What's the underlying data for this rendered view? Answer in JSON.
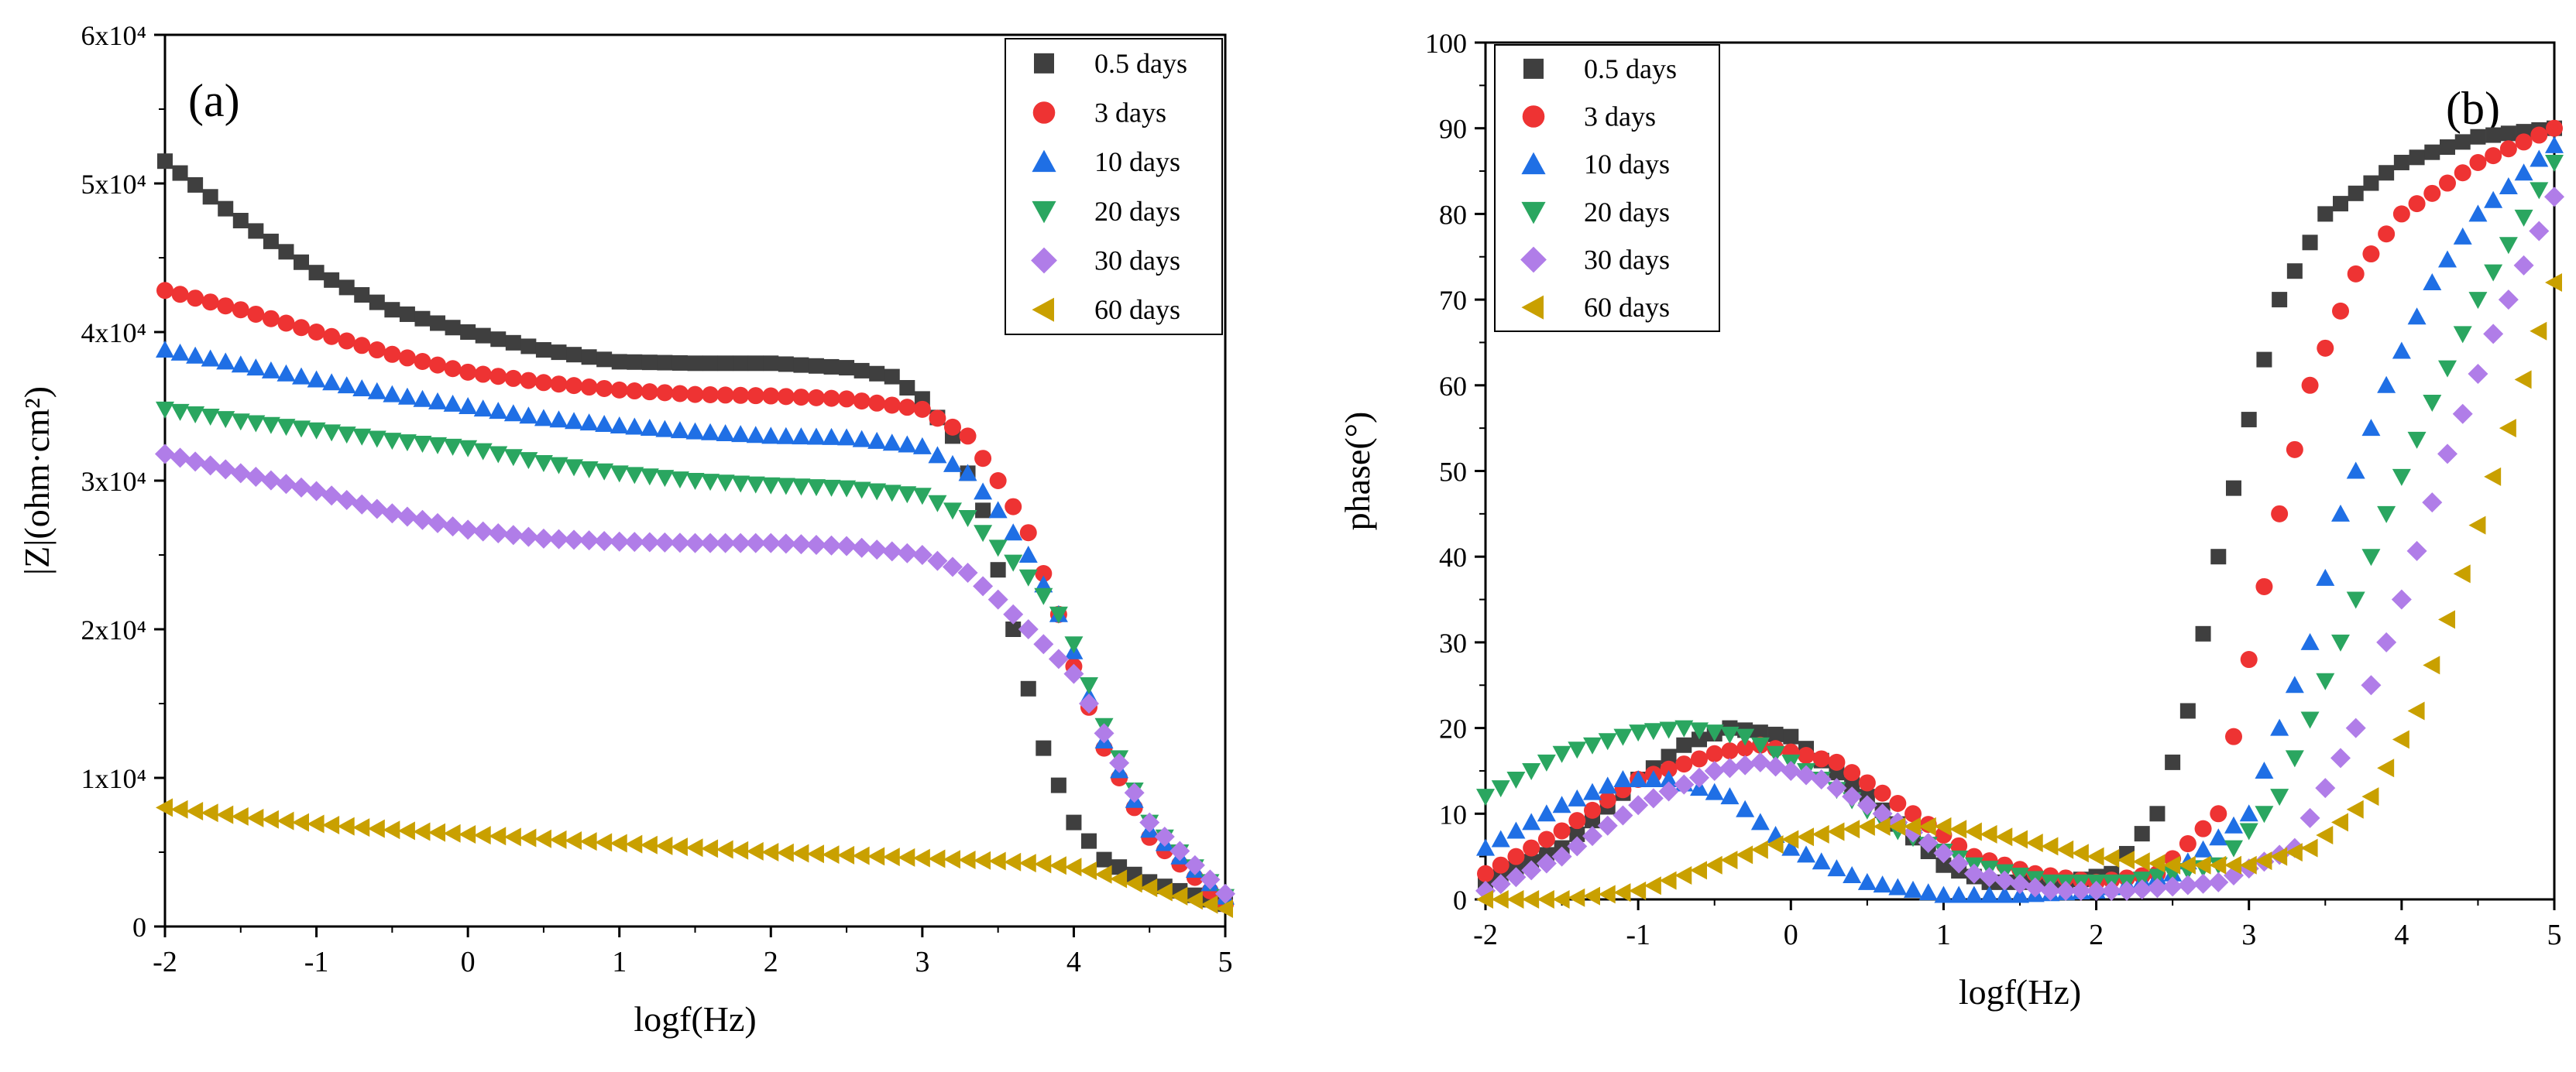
{
  "chart_data": [
    {
      "panel_label": "(a)",
      "type": "scatter",
      "xlabel": "logf(Hz)",
      "ylabel": "|Z|(ohm·cm²)",
      "xlim": [
        -2,
        5
      ],
      "ylim": [
        0,
        60000
      ],
      "x_ticks": [
        "-2",
        "-1",
        "0",
        "1",
        "2",
        "3",
        "4",
        "5"
      ],
      "y_ticks": [
        "0",
        "1x10⁴",
        "2x10⁴",
        "3x10⁴",
        "4x10⁴",
        "5x10⁴",
        "6x10⁴"
      ],
      "legend_position": "top-right",
      "series": [
        {
          "name": "0.5 days",
          "marker": "square",
          "color": "#3f3f3f",
          "points": [
            [
              -2,
              51500
            ],
            [
              -1.5,
              47500
            ],
            [
              -1,
              44000
            ],
            [
              -0.5,
              41500
            ],
            [
              0,
              40000
            ],
            [
              0.5,
              38800
            ],
            [
              1,
              38000
            ],
            [
              1.5,
              37900
            ],
            [
              2,
              37900
            ],
            [
              2.5,
              37600
            ],
            [
              2.8,
              37000
            ],
            [
              3,
              35500
            ],
            [
              3.2,
              33000
            ],
            [
              3.4,
              28000
            ],
            [
              3.6,
              20000
            ],
            [
              3.8,
              12000
            ],
            [
              4,
              7000
            ],
            [
              4.2,
              4500
            ],
            [
              4.5,
              3000
            ],
            [
              5,
              1500
            ]
          ]
        },
        {
          "name": "3 days",
          "marker": "circle",
          "color": "#ee3333",
          "points": [
            [
              -2,
              42800
            ],
            [
              -1.5,
              41500
            ],
            [
              -1,
              40000
            ],
            [
              -0.5,
              38500
            ],
            [
              0,
              37300
            ],
            [
              0.5,
              36600
            ],
            [
              1,
              36100
            ],
            [
              1.5,
              35800
            ],
            [
              2,
              35700
            ],
            [
              2.5,
              35500
            ],
            [
              3,
              34800
            ],
            [
              3.3,
              33000
            ],
            [
              3.5,
              30000
            ],
            [
              3.7,
              26500
            ],
            [
              3.9,
              21000
            ],
            [
              4,
              17500
            ],
            [
              4.2,
              12000
            ],
            [
              4.5,
              6000
            ],
            [
              5,
              1500
            ]
          ]
        },
        {
          "name": "10 days",
          "marker": "triangle-up",
          "color": "#1f6fe5",
          "points": [
            [
              -2,
              38800
            ],
            [
              -1.5,
              37800
            ],
            [
              -1,
              36800
            ],
            [
              -0.5,
              35800
            ],
            [
              0,
              35000
            ],
            [
              0.5,
              34200
            ],
            [
              1,
              33700
            ],
            [
              1.5,
              33300
            ],
            [
              2,
              33000
            ],
            [
              2.5,
              32900
            ],
            [
              3,
              32300
            ],
            [
              3.3,
              30500
            ],
            [
              3.5,
              28000
            ],
            [
              3.7,
              25000
            ],
            [
              3.9,
              21000
            ],
            [
              4,
              18500
            ],
            [
              4.2,
              12500
            ],
            [
              4.5,
              6500
            ],
            [
              5,
              2000
            ]
          ]
        },
        {
          "name": "20 days",
          "marker": "triangle-down",
          "color": "#2aa660",
          "points": [
            [
              -2,
              34800
            ],
            [
              -1.5,
              34000
            ],
            [
              -1,
              33400
            ],
            [
              -0.5,
              32700
            ],
            [
              0,
              32200
            ],
            [
              0.5,
              31200
            ],
            [
              1,
              30500
            ],
            [
              1.5,
              30000
            ],
            [
              2,
              29700
            ],
            [
              2.5,
              29500
            ],
            [
              3,
              29000
            ],
            [
              3.3,
              27500
            ],
            [
              3.5,
              25500
            ],
            [
              3.7,
              23500
            ],
            [
              3.9,
              21000
            ],
            [
              4,
              19000
            ],
            [
              4.2,
              13500
            ],
            [
              4.5,
              7000
            ],
            [
              5,
              2000
            ]
          ]
        },
        {
          "name": "30 days",
          "marker": "diamond",
          "color": "#b07de8",
          "points": [
            [
              -2,
              31800
            ],
            [
              -1.5,
              30500
            ],
            [
              -1,
              29300
            ],
            [
              -0.5,
              27800
            ],
            [
              0,
              26700
            ],
            [
              0.5,
              26100
            ],
            [
              1,
              25900
            ],
            [
              1.5,
              25800
            ],
            [
              2,
              25800
            ],
            [
              2.5,
              25600
            ],
            [
              3,
              25000
            ],
            [
              3.3,
              23800
            ],
            [
              3.5,
              22000
            ],
            [
              3.7,
              20000
            ],
            [
              3.9,
              18000
            ],
            [
              4,
              17000
            ],
            [
              4.2,
              13000
            ],
            [
              4.5,
              7000
            ],
            [
              5,
              2200
            ]
          ]
        },
        {
          "name": "60 days",
          "marker": "triangle-left",
          "color": "#c9a000",
          "points": [
            [
              -2,
              8000
            ],
            [
              -1.5,
              7400
            ],
            [
              -1,
              6900
            ],
            [
              -0.5,
              6500
            ],
            [
              0,
              6200
            ],
            [
              0.5,
              5900
            ],
            [
              1,
              5600
            ],
            [
              1.5,
              5300
            ],
            [
              2,
              5000
            ],
            [
              2.5,
              4800
            ],
            [
              3,
              4600
            ],
            [
              3.5,
              4400
            ],
            [
              3.8,
              4200
            ],
            [
              4,
              4000
            ],
            [
              4.2,
              3500
            ],
            [
              4.5,
              2600
            ],
            [
              5,
              1200
            ]
          ]
        }
      ]
    },
    {
      "panel_label": "(b)",
      "type": "scatter",
      "xlabel": "logf(Hz)",
      "ylabel": "phase(°)",
      "xlim": [
        -2,
        5
      ],
      "ylim": [
        0,
        100
      ],
      "x_ticks": [
        "-2",
        "-1",
        "0",
        "1",
        "2",
        "3",
        "4",
        "5"
      ],
      "y_ticks": [
        "0",
        "10",
        "20",
        "30",
        "40",
        "50",
        "60",
        "70",
        "80",
        "90",
        "100"
      ],
      "legend_position": "top-left",
      "series": [
        {
          "name": "0.5 days",
          "marker": "square",
          "color": "#3f3f3f",
          "points": [
            [
              -2,
              2
            ],
            [
              -1.5,
              6
            ],
            [
              -1,
              14
            ],
            [
              -0.7,
              18
            ],
            [
              -0.4,
              20
            ],
            [
              0,
              19
            ],
            [
              0.5,
              12
            ],
            [
              1,
              4
            ],
            [
              1.3,
              2
            ],
            [
              1.8,
              2
            ],
            [
              2.1,
              3
            ],
            [
              2.4,
              10
            ],
            [
              2.6,
              22
            ],
            [
              2.8,
              40
            ],
            [
              3,
              56
            ],
            [
              3.2,
              70
            ],
            [
              3.5,
              80
            ],
            [
              4,
              86
            ],
            [
              4.5,
              89
            ],
            [
              5,
              90
            ]
          ]
        },
        {
          "name": "3 days",
          "marker": "circle",
          "color": "#ee3333",
          "points": [
            [
              -2,
              3
            ],
            [
              -1.5,
              8
            ],
            [
              -1,
              14
            ],
            [
              -0.5,
              17
            ],
            [
              -0.2,
              18
            ],
            [
              0.3,
              16
            ],
            [
              0.8,
              10
            ],
            [
              1.2,
              5
            ],
            [
              1.6,
              3
            ],
            [
              2,
              2
            ],
            [
              2.4,
              3
            ],
            [
              2.8,
              10
            ],
            [
              3,
              28
            ],
            [
              3.2,
              45
            ],
            [
              3.4,
              60
            ],
            [
              3.7,
              73
            ],
            [
              4,
              80
            ],
            [
              4.5,
              86
            ],
            [
              5,
              90
            ]
          ]
        },
        {
          "name": "10 days",
          "marker": "triangle-up",
          "color": "#1f6fe5",
          "points": [
            [
              -2,
              6
            ],
            [
              -1.5,
              11
            ],
            [
              -1.1,
              14
            ],
            [
              -0.8,
              14
            ],
            [
              -0.4,
              12
            ],
            [
              0,
              6
            ],
            [
              0.5,
              2
            ],
            [
              1,
              0.5
            ],
            [
              1.5,
              0.5
            ],
            [
              2,
              1
            ],
            [
              2.5,
              3
            ],
            [
              3,
              10
            ],
            [
              3.4,
              30
            ],
            [
              3.6,
              45
            ],
            [
              3.9,
              60
            ],
            [
              4.2,
              72
            ],
            [
              4.5,
              80
            ],
            [
              5,
              88
            ]
          ]
        },
        {
          "name": "20 days",
          "marker": "triangle-down",
          "color": "#2aa660",
          "points": [
            [
              -2,
              12
            ],
            [
              -1.5,
              17
            ],
            [
              -1,
              19.5
            ],
            [
              -0.7,
              20
            ],
            [
              -0.3,
              19
            ],
            [
              0.2,
              14
            ],
            [
              0.7,
              8
            ],
            [
              1.2,
              4
            ],
            [
              1.7,
              2
            ],
            [
              2.2,
              2
            ],
            [
              2.8,
              4
            ],
            [
              3.2,
              12
            ],
            [
              3.6,
              30
            ],
            [
              3.9,
              45
            ],
            [
              4.2,
              58
            ],
            [
              4.5,
              70
            ],
            [
              5,
              86
            ]
          ]
        },
        {
          "name": "30 days",
          "marker": "diamond",
          "color": "#b07de8",
          "points": [
            [
              -2,
              1
            ],
            [
              -1.5,
              5
            ],
            [
              -1,
              11
            ],
            [
              -0.5,
              15
            ],
            [
              -0.2,
              16
            ],
            [
              0.2,
              14
            ],
            [
              0.7,
              9
            ],
            [
              1.2,
              3
            ],
            [
              1.7,
              1
            ],
            [
              2.2,
              1
            ],
            [
              2.8,
              2
            ],
            [
              3.3,
              6
            ],
            [
              3.7,
              20
            ],
            [
              4,
              35
            ],
            [
              4.3,
              52
            ],
            [
              4.6,
              66
            ],
            [
              5,
              82
            ]
          ]
        },
        {
          "name": "60 days",
          "marker": "triangle-left",
          "color": "#c9a000",
          "points": [
            [
              -2,
              0
            ],
            [
              -1.5,
              0
            ],
            [
              -1,
              1
            ],
            [
              -0.5,
              4
            ],
            [
              0,
              7
            ],
            [
              0.5,
              8.5
            ],
            [
              1,
              8.5
            ],
            [
              1.5,
              7
            ],
            [
              2,
              5
            ],
            [
              2.5,
              4
            ],
            [
              3,
              4
            ],
            [
              3.4,
              6
            ],
            [
              3.8,
              12
            ],
            [
              4.1,
              22
            ],
            [
              4.4,
              38
            ],
            [
              4.7,
              55
            ],
            [
              5,
              72
            ]
          ]
        }
      ]
    }
  ]
}
